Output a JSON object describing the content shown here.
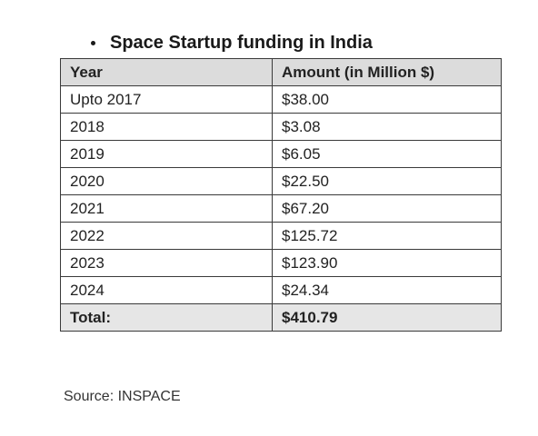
{
  "heading": "Space Startup funding in India",
  "table": {
    "headers": [
      "Year",
      "Amount (in Million $)"
    ],
    "rows": [
      [
        "Upto 2017",
        "$38.00"
      ],
      [
        "2018",
        "$3.08"
      ],
      [
        "2019",
        "$6.05"
      ],
      [
        "2020",
        "$22.50"
      ],
      [
        "2021",
        "$67.20"
      ],
      [
        "2022",
        "$125.72"
      ],
      [
        "2023",
        "$123.90"
      ],
      [
        "2024",
        "$24.34"
      ]
    ],
    "total": [
      "Total:",
      "$410.79"
    ]
  },
  "source": "Source: INSPACE"
}
